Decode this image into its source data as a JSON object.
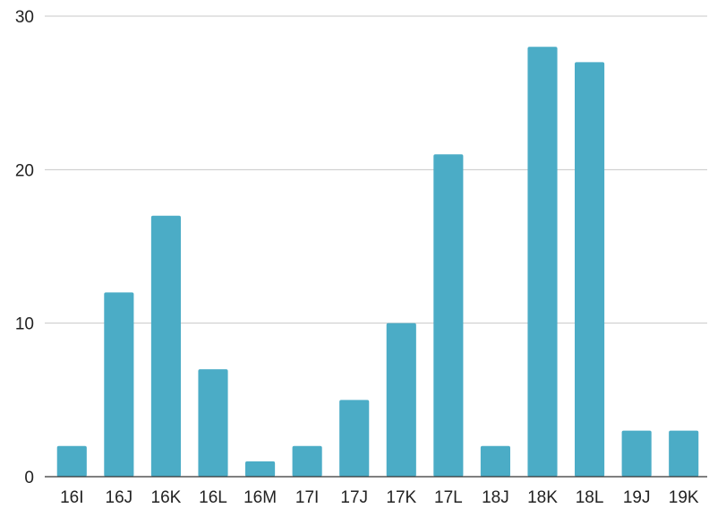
{
  "chart_data": {
    "type": "bar",
    "title": "",
    "xlabel": "",
    "ylabel": "",
    "categories": [
      "16I",
      "16J",
      "16K",
      "16L",
      "16M",
      "17I",
      "17J",
      "17K",
      "17L",
      "18J",
      "18K",
      "18L",
      "19J",
      "19K"
    ],
    "values": [
      2,
      12,
      17,
      7,
      1,
      2,
      5,
      10,
      21,
      2,
      28,
      27,
      3,
      3
    ],
    "ylim": [
      0,
      30
    ],
    "yticks": [
      "0",
      "10",
      "20",
      "30"
    ],
    "grid": true,
    "legend": "none",
    "colors": {
      "bar": "#4bacc6",
      "grid": "#c8c8c8",
      "axis": "#333333",
      "text": "#222222"
    }
  }
}
